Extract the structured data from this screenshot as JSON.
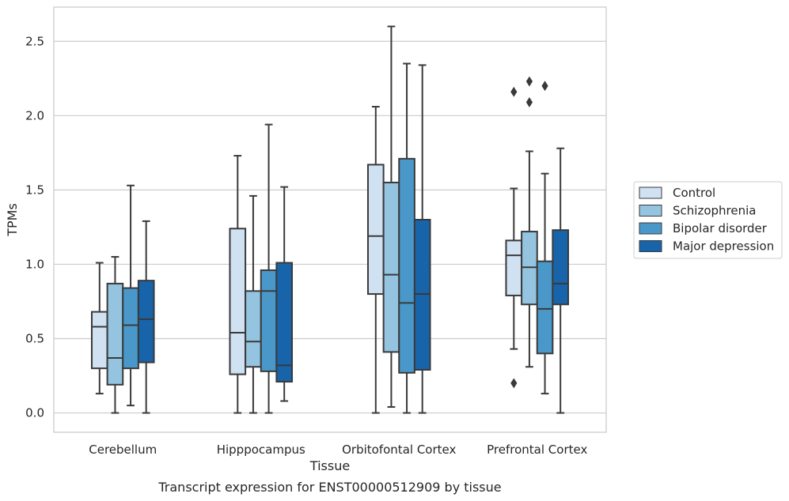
{
  "caption": "Transcript expression for ENST00000512909 by tissue",
  "chart_data": {
    "type": "box",
    "xlabel": "Tissue",
    "ylabel": "TPMs",
    "ylim": [
      -0.13,
      2.73
    ],
    "yticks": [
      0.0,
      0.5,
      1.0,
      1.5,
      2.0,
      2.5
    ],
    "ytick_labels": [
      "0.0",
      "0.5",
      "1.0",
      "1.5",
      "2.0",
      "2.5"
    ],
    "grid": "horizontal",
    "legend_position": "right",
    "categories": [
      "Cerebellum",
      "Hipppocampus",
      "Orbitofontal Cortex",
      "Prefrontal Cortex"
    ],
    "series": [
      {
        "name": "Control",
        "color": "#d0e1f2",
        "boxes": [
          {
            "whislo": 0.13,
            "q1": 0.3,
            "med": 0.58,
            "q3": 0.68,
            "whishi": 1.01,
            "fliers": []
          },
          {
            "whislo": 0.0,
            "q1": 0.26,
            "med": 0.54,
            "q3": 1.24,
            "whishi": 1.73,
            "fliers": []
          },
          {
            "whislo": 0.0,
            "q1": 0.8,
            "med": 1.19,
            "q3": 1.67,
            "whishi": 2.06,
            "fliers": []
          },
          {
            "whislo": 0.43,
            "q1": 0.79,
            "med": 1.06,
            "q3": 1.16,
            "whishi": 1.51,
            "fliers": [
              2.16,
              0.2
            ]
          }
        ]
      },
      {
        "name": "Schizophrenia",
        "color": "#94c4df",
        "boxes": [
          {
            "whislo": 0.0,
            "q1": 0.19,
            "med": 0.37,
            "q3": 0.87,
            "whishi": 1.05,
            "fliers": []
          },
          {
            "whislo": 0.0,
            "q1": 0.31,
            "med": 0.48,
            "q3": 0.82,
            "whishi": 1.46,
            "fliers": []
          },
          {
            "whislo": 0.04,
            "q1": 0.41,
            "med": 0.93,
            "q3": 1.55,
            "whishi": 2.6,
            "fliers": []
          },
          {
            "whislo": 0.31,
            "q1": 0.73,
            "med": 0.98,
            "q3": 1.22,
            "whishi": 1.76,
            "fliers": [
              2.23,
              2.09
            ]
          }
        ]
      },
      {
        "name": "Bipolar disorder",
        "color": "#4a98c9",
        "boxes": [
          {
            "whislo": 0.05,
            "q1": 0.3,
            "med": 0.59,
            "q3": 0.84,
            "whishi": 1.53,
            "fliers": []
          },
          {
            "whislo": 0.0,
            "q1": 0.28,
            "med": 0.82,
            "q3": 0.96,
            "whishi": 1.94,
            "fliers": []
          },
          {
            "whislo": 0.0,
            "q1": 0.27,
            "med": 0.74,
            "q3": 1.71,
            "whishi": 2.35,
            "fliers": []
          },
          {
            "whislo": 0.13,
            "q1": 0.4,
            "med": 0.7,
            "q3": 1.02,
            "whishi": 1.61,
            "fliers": [
              2.2
            ]
          }
        ]
      },
      {
        "name": "Major depression",
        "color": "#1764ab",
        "boxes": [
          {
            "whislo": 0.0,
            "q1": 0.34,
            "med": 0.63,
            "q3": 0.89,
            "whishi": 1.29,
            "fliers": []
          },
          {
            "whislo": 0.08,
            "q1": 0.21,
            "med": 0.32,
            "q3": 1.01,
            "whishi": 1.52,
            "fliers": []
          },
          {
            "whislo": 0.0,
            "q1": 0.29,
            "med": 0.8,
            "q3": 1.3,
            "whishi": 2.34,
            "fliers": []
          },
          {
            "whislo": 0.0,
            "q1": 0.73,
            "med": 0.87,
            "q3": 1.23,
            "whishi": 1.78,
            "fliers": []
          }
        ]
      }
    ]
  }
}
